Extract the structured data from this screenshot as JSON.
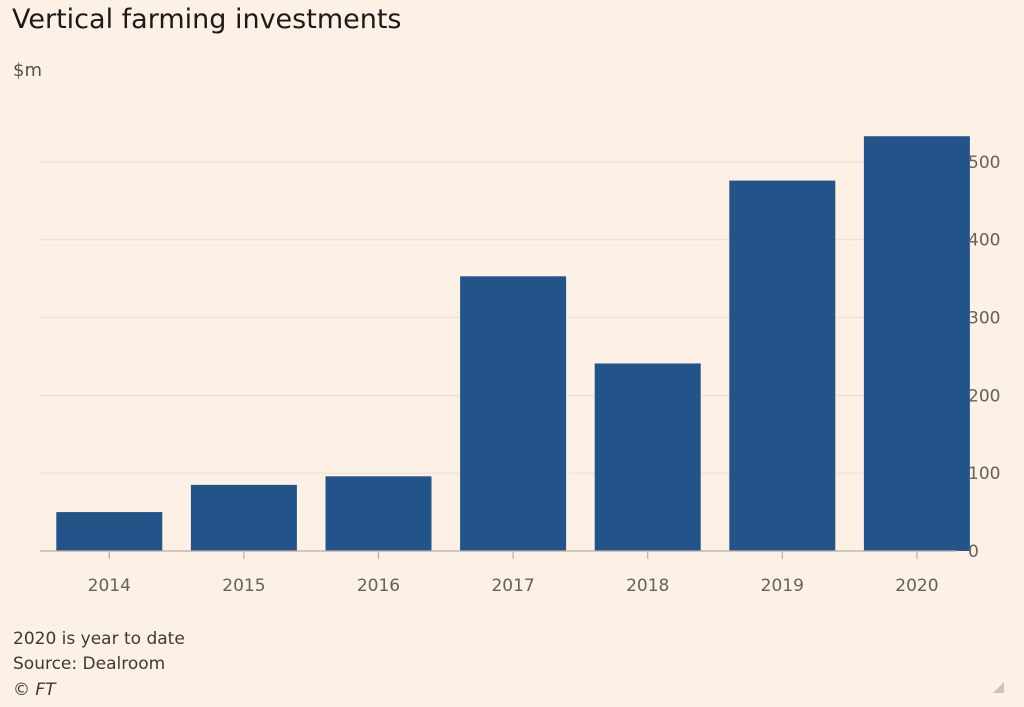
{
  "chart_data": {
    "type": "bar",
    "title": "Vertical farming investments",
    "ylabel": "$m",
    "xlabel": "",
    "categories": [
      "2014",
      "2015",
      "2016",
      "2017",
      "2018",
      "2019",
      "2020"
    ],
    "values": [
      50,
      85,
      96,
      353,
      241,
      476,
      533
    ],
    "ylim": [
      0,
      550
    ],
    "yticks": [
      0,
      100,
      200,
      300,
      400,
      500
    ],
    "y_axis_side": "right",
    "grid": true,
    "bar_color": "#22548a",
    "grid_color": "#ecdfd3",
    "axis_color": "#b9aea4"
  },
  "footer": {
    "note": "2020 is year to date",
    "source": "Source: Dealroom",
    "copyright": "© FT"
  }
}
